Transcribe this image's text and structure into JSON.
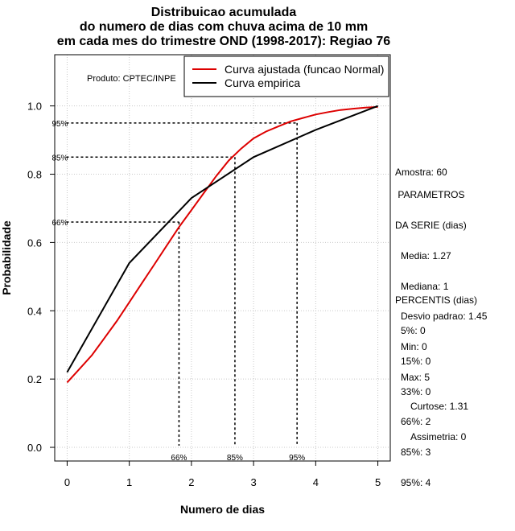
{
  "chart_data": {
    "type": "line",
    "title": [
      "Distribuicao acumulada",
      "do numero de dias com chuva acima de 10 mm",
      "em cada mes do trimestre OND (1998-2017): Regiao 76"
    ],
    "xlabel": "Numero de dias",
    "ylabel": "Probabilidade",
    "xlim": [
      -0.2,
      5.2
    ],
    "ylim": [
      -0.04,
      1.15
    ],
    "x_ticks": [
      0,
      1,
      2,
      3,
      4,
      5
    ],
    "y_ticks": [
      0.0,
      0.2,
      0.4,
      0.6,
      0.8,
      1.0
    ],
    "y_tick_labels": [
      "0.0",
      "0.2",
      "0.4",
      "0.6",
      "0.8",
      "1.0"
    ],
    "grid": true,
    "legend_position": "top-right",
    "product_label": "Produto: CPTEC/INPE",
    "series": [
      {
        "name": "Curva ajustada (funcao Normal)",
        "color": "#dd0000",
        "x": [
          0,
          0.2,
          0.4,
          0.6,
          0.8,
          1.0,
          1.2,
          1.4,
          1.6,
          1.8,
          2.0,
          2.2,
          2.4,
          2.6,
          2.8,
          3.0,
          3.2,
          3.4,
          3.6,
          3.8,
          4.0,
          4.2,
          4.4,
          4.6,
          4.8,
          5.0
        ],
        "y": [
          0.19,
          0.23,
          0.27,
          0.32,
          0.37,
          0.425,
          0.48,
          0.535,
          0.59,
          0.645,
          0.695,
          0.745,
          0.795,
          0.84,
          0.875,
          0.905,
          0.925,
          0.94,
          0.955,
          0.965,
          0.975,
          0.982,
          0.988,
          0.992,
          0.995,
          0.997
        ]
      },
      {
        "name": "Curva empirica",
        "color": "#000000",
        "x": [
          0,
          1,
          2,
          3,
          4,
          5
        ],
        "y": [
          0.22,
          0.54,
          0.73,
          0.85,
          0.93,
          1.0
        ]
      }
    ],
    "percentile_markers": [
      {
        "label": "66%",
        "x": 1.8,
        "y": 0.66
      },
      {
        "label": "85%",
        "x": 2.7,
        "y": 0.85
      },
      {
        "label": "95%",
        "x": 3.7,
        "y": 0.95
      }
    ]
  },
  "stats": {
    "amostra": "Amostra: 60",
    "param_title_1": " PARAMETROS",
    "param_title_2": "DA SERIE (dias)",
    "media": "Media: 1.27",
    "mediana": "Mediana: 1",
    "desvio": "Desvio padrao: 1.45",
    "min": "Min: 0",
    "max": "Max: 5",
    "percentis_title": "PERCENTIS (dias)",
    "p5": "5%: 0",
    "p15": "15%: 0",
    "p33": "33%: 0",
    "p66": "66%: 2",
    "p85": "85%: 3",
    "p95": "95%: 4",
    "curtose": "Curtose: 1.31",
    "assimetria": "Assimetria: 0"
  }
}
